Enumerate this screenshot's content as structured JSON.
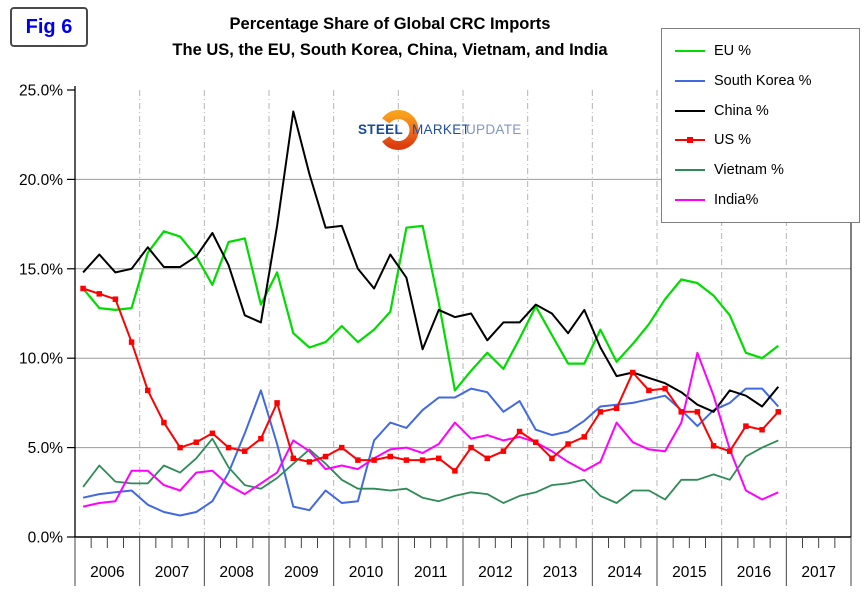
{
  "figure_label": "Fig 6",
  "watermark": {
    "word1": "STEEL",
    "word2": "MARKET",
    "word3": "UPDATE"
  },
  "chart_data": {
    "type": "line",
    "title": "Percentage Share of Global CRC Imports",
    "subtitle": "The US, the EU, South Korea, China, Vietnam, and India",
    "ylim": [
      0,
      25
    ],
    "y_ticks": [
      0,
      5,
      10,
      15,
      20,
      25
    ],
    "y_tick_labels": [
      "0.0%",
      "5.0%",
      "10.0%",
      "15.0%",
      "20.0%",
      "25.0%"
    ],
    "x_year_labels": [
      "2006",
      "2007",
      "2008",
      "2009",
      "2010",
      "2011",
      "2012",
      "2013",
      "2014",
      "2015",
      "2016",
      "2017"
    ],
    "grid": {
      "horizontal": "solid",
      "vertical": "dash-dot at year boundaries"
    },
    "legend_position": "top-right",
    "x_unit": "quarter",
    "categories": [
      "2006Q1",
      "2006Q2",
      "2006Q3",
      "2006Q4",
      "2007Q1",
      "2007Q2",
      "2007Q3",
      "2007Q4",
      "2008Q1",
      "2008Q2",
      "2008Q3",
      "2008Q4",
      "2009Q1",
      "2009Q2",
      "2009Q3",
      "2009Q4",
      "2010Q1",
      "2010Q2",
      "2010Q3",
      "2010Q4",
      "2011Q1",
      "2011Q2",
      "2011Q3",
      "2011Q4",
      "2012Q1",
      "2012Q2",
      "2012Q3",
      "2012Q4",
      "2013Q1",
      "2013Q2",
      "2013Q3",
      "2013Q4",
      "2014Q1",
      "2014Q2",
      "2014Q3",
      "2014Q4",
      "2015Q1",
      "2015Q2",
      "2015Q3",
      "2015Q4",
      "2016Q1",
      "2016Q2",
      "2016Q3",
      "2016Q4"
    ],
    "z_order": [
      0,
      1,
      2,
      4,
      5,
      3
    ],
    "series": [
      {
        "id": "eu",
        "name": "EU %",
        "color": "#00dc00",
        "marker": "none",
        "width": 2.2,
        "values": [
          13.9,
          12.8,
          12.7,
          12.8,
          15.9,
          17.1,
          16.8,
          15.7,
          14.1,
          16.5,
          16.7,
          13.0,
          14.8,
          11.4,
          10.6,
          10.9,
          11.8,
          10.9,
          11.6,
          12.6,
          17.3,
          17.4,
          13.1,
          8.2,
          9.3,
          10.3,
          9.4,
          11.1,
          12.9,
          11.3,
          9.7,
          9.7,
          11.6,
          9.8,
          10.8,
          11.9,
          13.3,
          14.4,
          14.2,
          13.5,
          12.4,
          10.3,
          10.0,
          10.7
        ]
      },
      {
        "id": "south-korea",
        "name": "South Korea %",
        "color": "#4169e1",
        "marker": "none",
        "width": 2,
        "values": [
          2.2,
          2.4,
          2.5,
          2.6,
          1.8,
          1.4,
          1.2,
          1.4,
          2.0,
          3.6,
          5.8,
          8.2,
          5.2,
          1.7,
          1.5,
          2.6,
          1.9,
          2.0,
          5.4,
          6.4,
          6.1,
          7.1,
          7.8,
          7.8,
          8.3,
          8.1,
          7.0,
          7.6,
          6.0,
          5.7,
          5.9,
          6.5,
          7.3,
          7.4,
          7.5,
          7.7,
          7.9,
          7.1,
          6.2,
          7.1,
          7.5,
          8.3,
          8.3,
          7.3
        ]
      },
      {
        "id": "china",
        "name": "China %",
        "color": "#000000",
        "marker": "none",
        "width": 2,
        "values": [
          14.8,
          15.8,
          14.8,
          15.0,
          16.2,
          15.1,
          15.1,
          15.7,
          17.0,
          15.2,
          12.4,
          12.0,
          17.4,
          23.8,
          20.3,
          17.3,
          17.4,
          15.0,
          13.9,
          15.8,
          14.5,
          10.5,
          12.7,
          12.3,
          12.5,
          11.0,
          12.0,
          12.0,
          13.0,
          12.5,
          11.4,
          12.7,
          10.6,
          9.0,
          9.2,
          8.9,
          8.6,
          8.1,
          7.4,
          7.0,
          8.2,
          7.9,
          7.3,
          8.4
        ]
      },
      {
        "id": "us",
        "name": "US %",
        "color": "#ff0000",
        "marker": "square",
        "width": 2,
        "values": [
          13.9,
          13.6,
          13.3,
          10.9,
          8.2,
          6.4,
          5.0,
          5.3,
          5.8,
          5.0,
          4.8,
          5.5,
          7.5,
          4.4,
          4.2,
          4.5,
          5.0,
          4.3,
          4.3,
          4.5,
          4.3,
          4.3,
          4.4,
          3.7,
          5.0,
          4.4,
          4.8,
          5.9,
          5.3,
          4.4,
          5.2,
          5.6,
          7.0,
          7.2,
          9.2,
          8.2,
          8.3,
          7.0,
          7.0,
          5.1,
          4.8,
          6.2,
          6.0,
          7.0
        ]
      },
      {
        "id": "vietnam",
        "name": "Vietnam %",
        "color": "#2e8b57",
        "marker": "none",
        "width": 1.8,
        "values": [
          2.8,
          4.0,
          3.1,
          3.0,
          3.0,
          4.0,
          3.6,
          4.4,
          5.5,
          3.9,
          2.9,
          2.7,
          3.3,
          4.1,
          4.9,
          4.1,
          3.2,
          2.7,
          2.7,
          2.6,
          2.7,
          2.2,
          2.0,
          2.3,
          2.5,
          2.4,
          1.9,
          2.3,
          2.5,
          2.9,
          3.0,
          3.2,
          2.3,
          1.9,
          2.6,
          2.6,
          2.1,
          3.2,
          3.2,
          3.5,
          3.2,
          4.5,
          5.0,
          5.4
        ]
      },
      {
        "id": "india",
        "name": "India%",
        "color": "#ff00ff",
        "marker": "none",
        "width": 2,
        "values": [
          1.7,
          1.9,
          2.0,
          3.7,
          3.7,
          2.9,
          2.6,
          3.6,
          3.7,
          2.9,
          2.4,
          3.0,
          3.6,
          5.4,
          4.8,
          3.8,
          4.0,
          3.8,
          4.4,
          4.9,
          5.0,
          4.7,
          5.2,
          6.4,
          5.5,
          5.7,
          5.4,
          5.6,
          5.3,
          4.8,
          4.2,
          3.7,
          4.2,
          6.4,
          5.3,
          4.9,
          4.8,
          6.4,
          10.3,
          7.9,
          4.9,
          2.6,
          2.1,
          2.5
        ]
      }
    ]
  }
}
